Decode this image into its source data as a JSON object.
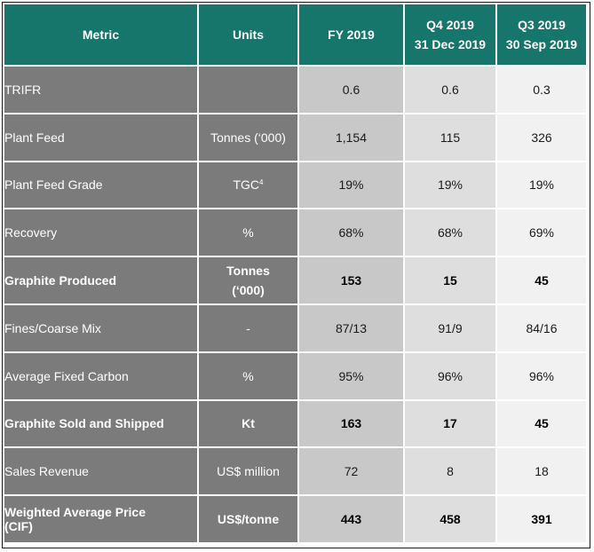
{
  "headers": {
    "metric": "Metric",
    "units": "Units",
    "fy": "FY 2019",
    "q4_line1": "Q4 2019",
    "q4_line2": "31 Dec 2019",
    "q3_line1": "Q3 2019",
    "q3_line2": "30 Sep 2019"
  },
  "rows": [
    {
      "metric": "TRIFR",
      "units": "",
      "fy": "0.6",
      "q4": "0.6",
      "q3": "0.3"
    },
    {
      "metric": "Plant Feed",
      "units": "Tonnes (‘000)",
      "fy": "1,154",
      "q4": "115",
      "q3": "326"
    },
    {
      "metric": "Plant Feed Grade",
      "units": "TGC",
      "units_sup": "4",
      "fy": "19%",
      "q4": "19%",
      "q3": "19%"
    },
    {
      "metric": "Recovery",
      "units": "%",
      "fy": "68%",
      "q4": "68%",
      "q3": "69%"
    },
    {
      "metric": "Graphite Produced",
      "units_line1": "Tonnes",
      "units_line2": "(‘000)",
      "fy": "153",
      "q4": "15",
      "q3": "45"
    },
    {
      "metric": "Fines/Coarse Mix",
      "units": "-",
      "fy": "87/13",
      "q4": "91/9",
      "q3": "84/16"
    },
    {
      "metric": "Average Fixed Carbon",
      "units": "%",
      "fy": "95%",
      "q4": "96%",
      "q3": "96%"
    },
    {
      "metric": "Graphite Sold and Shipped",
      "units": "Kt",
      "fy": "163",
      "q4": "17",
      "q3": "45"
    },
    {
      "metric": "Sales Revenue",
      "units": "US$ million",
      "fy": "72",
      "q4": "8",
      "q3": "18"
    },
    {
      "metric_line1": "Weighted Average Price",
      "metric_line2": "(CIF)",
      "units": "US$/tonne",
      "fy": "443",
      "q4": "458",
      "q3": "391"
    }
  ]
}
